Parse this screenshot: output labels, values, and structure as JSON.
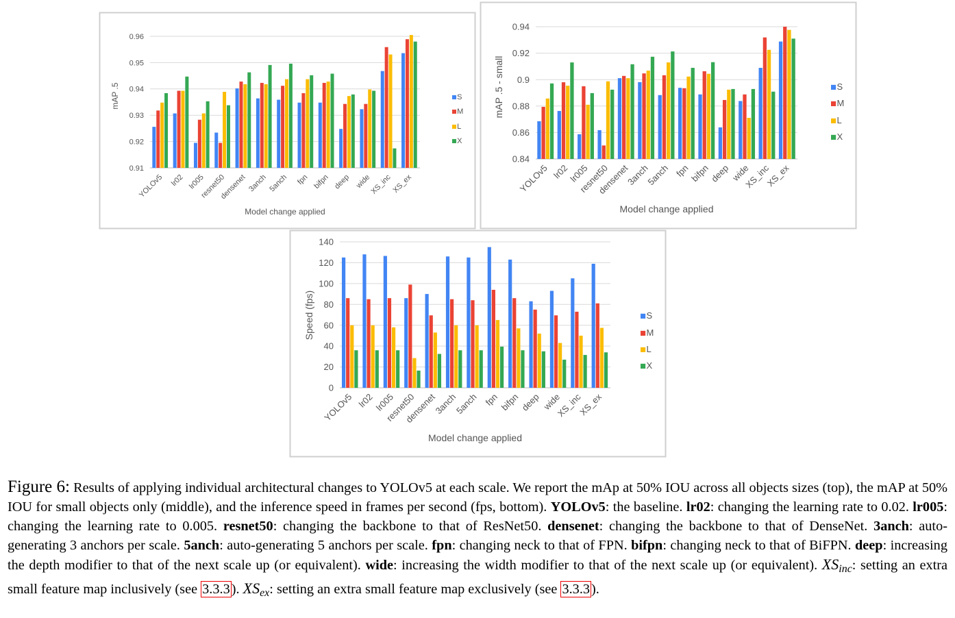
{
  "colors": {
    "S": "#4285f4",
    "M": "#ea4335",
    "L": "#fbbc04",
    "X": "#34a853"
  },
  "chart_data": [
    {
      "type": "bar",
      "title": "",
      "xlabel": "Model change applied",
      "ylabel": "mAP .5",
      "ylim": [
        0.91,
        0.96
      ],
      "yticks": [
        "0.91",
        "0.92",
        "0.93",
        "0.94",
        "0.95",
        "0.96"
      ],
      "ytick_values": [
        0.91,
        0.92,
        0.93,
        0.94,
        0.95,
        0.96
      ],
      "grid": true,
      "legend": "right",
      "categories": [
        "YOLOv5",
        "lr02",
        "lr005",
        "resnet50",
        "densenet",
        "3anch",
        "5anch",
        "fpn",
        "bifpn",
        "deep",
        "wide",
        "XS_inc",
        "XS_ex"
      ],
      "series": [
        {
          "name": "S",
          "values": [
            0.9256,
            0.9307,
            0.9195,
            0.9234,
            0.9402,
            0.9364,
            0.9359,
            0.9348,
            0.9348,
            0.9248,
            0.9323,
            0.9468,
            0.9536
          ]
        },
        {
          "name": "M",
          "values": [
            0.9318,
            0.9393,
            0.9283,
            0.9195,
            0.9428,
            0.9423,
            0.9412,
            0.9384,
            0.9423,
            0.9343,
            0.9343,
            0.9559,
            0.9589
          ]
        },
        {
          "name": "L",
          "values": [
            0.9348,
            0.9393,
            0.9307,
            0.9389,
            0.9418,
            0.9418,
            0.9437,
            0.9437,
            0.9428,
            0.9373,
            0.9398,
            0.9531,
            0.9605
          ]
        },
        {
          "name": "X",
          "values": [
            0.9384,
            0.9447,
            0.9353,
            0.9338,
            0.9463,
            0.9491,
            0.9496,
            0.9452,
            0.9458,
            0.9379,
            0.9393,
            0.9174,
            0.958
          ]
        }
      ]
    },
    {
      "type": "bar",
      "title": "",
      "xlabel": "Model change applied",
      "ylabel": "mAP .5 - small",
      "ylim": [
        0.84,
        0.94
      ],
      "yticks": [
        "0.84",
        "0.86",
        "0.88",
        "0.9",
        "0.92",
        "0.94"
      ],
      "ytick_values": [
        0.84,
        0.86,
        0.88,
        0.9,
        0.92,
        0.94
      ],
      "grid": true,
      "legend": "right",
      "categories": [
        "YOLOv5",
        "lr02",
        "lr005",
        "resnet50",
        "densenet",
        "3anch",
        "5anch",
        "fpn",
        "bifpn",
        "deep",
        "wide",
        "XS_inc",
        "XS_ex"
      ],
      "series": [
        {
          "name": "S",
          "values": [
            0.8685,
            0.8763,
            0.8587,
            0.8618,
            0.9011,
            0.8981,
            0.8883,
            0.8938,
            0.8888,
            0.8639,
            0.8838,
            0.9089,
            0.9288
          ]
        },
        {
          "name": "M",
          "values": [
            0.8794,
            0.898,
            0.895,
            0.8502,
            0.9028,
            0.9047,
            0.9033,
            0.8935,
            0.9063,
            0.8846,
            0.8888,
            0.9319,
            0.94
          ]
        },
        {
          "name": "L",
          "values": [
            0.8857,
            0.8954,
            0.881,
            0.8987,
            0.9011,
            0.9068,
            0.913,
            0.9023,
            0.9044,
            0.8924,
            0.8711,
            0.9225,
            0.9376
          ]
        },
        {
          "name": "X",
          "values": [
            0.8971,
            0.913,
            0.8898,
            0.8924,
            0.9116,
            0.9173,
            0.9213,
            0.9089,
            0.9132,
            0.8929,
            0.8929,
            0.8909,
            0.931
          ]
        }
      ]
    },
    {
      "type": "bar",
      "title": "",
      "xlabel": "Model change applied",
      "ylabel": "Speed (fps)",
      "ylim": [
        0,
        140
      ],
      "yticks": [
        "0",
        "20",
        "40",
        "60",
        "80",
        "100",
        "120",
        "140"
      ],
      "ytick_values": [
        0,
        20,
        40,
        60,
        80,
        100,
        120,
        140
      ],
      "grid": true,
      "legend": "right",
      "categories": [
        "YOLOv5",
        "lr02",
        "lr005",
        "resnet50",
        "densenet",
        "3anch",
        "5anch",
        "fpn",
        "bifpn",
        "deep",
        "wide",
        "XS_inc",
        "XS_ex"
      ],
      "series": [
        {
          "name": "S",
          "values": [
            125,
            128,
            126.5,
            86,
            90,
            126,
            125,
            135,
            123,
            83,
            93,
            105,
            119
          ]
        },
        {
          "name": "M",
          "values": [
            86,
            85,
            86,
            99,
            69.5,
            85,
            84,
            94,
            86,
            75,
            69.5,
            73,
            81
          ]
        },
        {
          "name": "L",
          "values": [
            60,
            60,
            58,
            28.5,
            53,
            60,
            60,
            65,
            57,
            52,
            43,
            50,
            57.5
          ]
        },
        {
          "name": "X",
          "values": [
            36,
            36,
            36,
            16.5,
            32.5,
            36,
            36,
            39.5,
            36,
            35,
            27,
            31.5,
            34
          ]
        }
      ]
    }
  ],
  "caption": [
    {
      "t": "Figure 6:",
      "s": "fig"
    },
    {
      "t": " Results of applying individual architectural changes to YOLOv5 at each scale.  We report the mAp at 50% IOU across all objects sizes (top), the mAP at 50% IOU for small objects only (middle), and the inference speed in frames per second (fps, bottom). "
    },
    {
      "t": "YOLOv5",
      "s": "b"
    },
    {
      "t": ": the baseline. "
    },
    {
      "t": "lr02",
      "s": "b"
    },
    {
      "t": ": changing the learning rate to 0.02. "
    },
    {
      "t": "lr005",
      "s": "b"
    },
    {
      "t": ": changing the learning rate to 0.005. "
    },
    {
      "t": "resnet50",
      "s": "b"
    },
    {
      "t": ": changing the backbone to that of ResNet50. "
    },
    {
      "t": "densenet",
      "s": "b"
    },
    {
      "t": ": changing the backbone to that of DenseNet. "
    },
    {
      "t": "3anch",
      "s": "b"
    },
    {
      "t": ": auto-generating 3 anchors per scale. "
    },
    {
      "t": "5anch",
      "s": "b"
    },
    {
      "t": ": auto-generating 5 anchors per scale. "
    },
    {
      "t": "fpn",
      "s": "b"
    },
    {
      "t": ": changing neck to that of FPN. "
    },
    {
      "t": "bifpn",
      "s": "b"
    },
    {
      "t": ": changing neck to that of BiFPN. "
    },
    {
      "t": "deep",
      "s": "b"
    },
    {
      "t": ": increasing the depth modifier to that of the next scale up (or equivalent). "
    },
    {
      "t": "wide",
      "s": "b"
    },
    {
      "t": ": increasing the width modifier to that of the next scale up (or equivalent). "
    },
    {
      "t": "XS",
      "s": "m"
    },
    {
      "t": "inc",
      "s": "sub"
    },
    {
      "t": ": setting an extra small feature map inclusively (see "
    },
    {
      "t": "3.3.3",
      "s": "ref"
    },
    {
      "t": "). "
    },
    {
      "t": "XS",
      "s": "m"
    },
    {
      "t": "ex",
      "s": "sub"
    },
    {
      "t": ": setting an extra small feature map exclusively (see "
    },
    {
      "t": "3.3.3",
      "s": "ref"
    },
    {
      "t": ")."
    }
  ]
}
